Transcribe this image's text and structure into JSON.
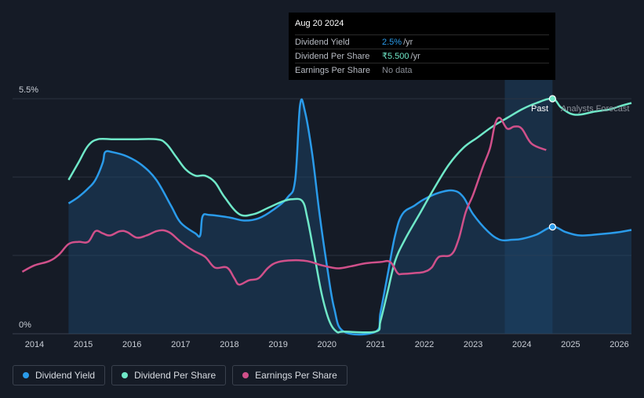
{
  "tooltip": {
    "date": "Aug 20 2024",
    "rows": [
      {
        "label": "Dividend Yield",
        "value": "2.5%",
        "unit": "/yr"
      },
      {
        "label": "Dividend Per Share",
        "value": "₹5.500",
        "unit": "/yr"
      },
      {
        "label": "Earnings Per Share",
        "value": "No data",
        "unit": ""
      }
    ]
  },
  "legend": [
    {
      "label": "Dividend Yield",
      "color": "#2a9bea"
    },
    {
      "label": "Dividend Per Share",
      "color": "#6fe8c8"
    },
    {
      "label": "Earnings Per Share",
      "color": "#d0508a"
    }
  ],
  "chart_data": {
    "type": "line",
    "title": "",
    "xlabel": "",
    "ylabel": "",
    "y_top_label": "5.5%",
    "y_bottom_label": "0%",
    "past_label": "Past",
    "forecast_label": "Analysts Forecast",
    "xlim": [
      2013.55,
      2026.25
    ],
    "ylim": [
      0,
      5.5
    ],
    "x_ticks": [
      2014,
      2015,
      2016,
      2017,
      2018,
      2019,
      2020,
      2021,
      2022,
      2023,
      2024,
      2025,
      2026
    ],
    "past_band": [
      2023.65,
      2024.63
    ],
    "marker_x": 2024.63,
    "series": [
      {
        "name": "Dividend Yield",
        "color": "#2a9bea",
        "filled": true,
        "x": [
          2014.7,
          2014.9,
          2015.1,
          2015.25,
          2015.4,
          2015.45,
          2015.6,
          2015.9,
          2016.2,
          2016.5,
          2016.8,
          2017.0,
          2017.3,
          2017.4,
          2017.45,
          2017.6,
          2018.0,
          2018.3,
          2018.6,
          2018.9,
          2019.2,
          2019.35,
          2019.45,
          2019.55,
          2019.7,
          2019.85,
          2020.0,
          2020.15,
          2020.35,
          2021.0,
          2021.1,
          2021.25,
          2021.4,
          2021.55,
          2021.8,
          2022.0,
          2022.3,
          2022.6,
          2022.8,
          2023.0,
          2023.3,
          2023.55,
          2023.8,
          2024.0,
          2024.3,
          2024.63,
          2024.9,
          2025.2,
          2025.6,
          2026.0,
          2026.25
        ],
        "y": [
          3.05,
          3.2,
          3.4,
          3.6,
          4.0,
          4.25,
          4.25,
          4.15,
          3.95,
          3.6,
          3.0,
          2.6,
          2.35,
          2.3,
          2.75,
          2.78,
          2.72,
          2.65,
          2.7,
          2.9,
          3.2,
          3.6,
          5.35,
          5.2,
          4.2,
          2.8,
          1.6,
          0.6,
          0.05,
          0.05,
          0.5,
          1.4,
          2.3,
          2.8,
          3.0,
          3.15,
          3.3,
          3.35,
          3.2,
          2.8,
          2.4,
          2.2,
          2.2,
          2.22,
          2.32,
          2.5,
          2.38,
          2.3,
          2.33,
          2.38,
          2.43
        ]
      },
      {
        "name": "Dividend Per Share",
        "color": "#6fe8c8",
        "filled": false,
        "x": [
          2014.7,
          2014.9,
          2015.1,
          2015.3,
          2015.6,
          2016.0,
          2016.5,
          2016.7,
          2016.9,
          2017.1,
          2017.3,
          2017.5,
          2017.7,
          2017.9,
          2018.2,
          2018.5,
          2018.8,
          2019.1,
          2019.3,
          2019.5,
          2019.6,
          2019.75,
          2019.9,
          2020.05,
          2020.2,
          2020.35,
          2021.0,
          2021.1,
          2021.25,
          2021.4,
          2021.6,
          2021.9,
          2022.2,
          2022.5,
          2022.8,
          2023.1,
          2023.4,
          2023.7,
          2024.0,
          2024.3,
          2024.63,
          2024.8,
          2025.0,
          2025.2,
          2025.5,
          2025.8,
          2026.0,
          2026.25
        ],
        "y": [
          3.6,
          4.0,
          4.4,
          4.55,
          4.55,
          4.55,
          4.55,
          4.45,
          4.15,
          3.85,
          3.7,
          3.7,
          3.55,
          3.2,
          2.8,
          2.8,
          2.95,
          3.1,
          3.15,
          3.1,
          2.7,
          1.8,
          0.9,
          0.3,
          0.05,
          0.05,
          0.05,
          0.3,
          1.0,
          1.7,
          2.2,
          2.8,
          3.4,
          3.95,
          4.35,
          4.6,
          4.85,
          5.05,
          5.25,
          5.4,
          5.5,
          5.3,
          5.15,
          5.13,
          5.2,
          5.25,
          5.32,
          5.4
        ]
      },
      {
        "name": "Earnings Per Share",
        "color": "#d0508a",
        "filled": false,
        "x": [
          2013.75,
          2014.0,
          2014.3,
          2014.5,
          2014.7,
          2014.9,
          2015.1,
          2015.25,
          2015.4,
          2015.55,
          2015.75,
          2015.9,
          2016.1,
          2016.3,
          2016.5,
          2016.65,
          2016.8,
          2017.0,
          2017.25,
          2017.5,
          2017.7,
          2017.95,
          2018.1,
          2018.2,
          2018.4,
          2018.6,
          2018.8,
          2019.0,
          2019.3,
          2019.6,
          2019.9,
          2020.1,
          2020.25,
          2020.5,
          2020.8,
          2021.1,
          2021.3,
          2021.45,
          2021.55,
          2021.8,
          2022.0,
          2022.15,
          2022.3,
          2022.55,
          2022.7,
          2022.85,
          2023.0,
          2023.2,
          2023.35,
          2023.45,
          2023.55,
          2023.7,
          2023.85,
          2024.0,
          2024.2,
          2024.5
        ],
        "y": [
          1.45,
          1.6,
          1.7,
          1.85,
          2.1,
          2.15,
          2.15,
          2.4,
          2.35,
          2.3,
          2.4,
          2.38,
          2.25,
          2.3,
          2.4,
          2.42,
          2.35,
          2.15,
          1.95,
          1.8,
          1.55,
          1.55,
          1.3,
          1.15,
          1.25,
          1.3,
          1.55,
          1.68,
          1.72,
          1.7,
          1.6,
          1.55,
          1.53,
          1.58,
          1.65,
          1.68,
          1.68,
          1.42,
          1.4,
          1.42,
          1.45,
          1.55,
          1.8,
          1.85,
          2.2,
          2.85,
          3.25,
          3.9,
          4.35,
          4.9,
          5.05,
          4.8,
          4.85,
          4.8,
          4.45,
          4.3
        ]
      }
    ]
  }
}
